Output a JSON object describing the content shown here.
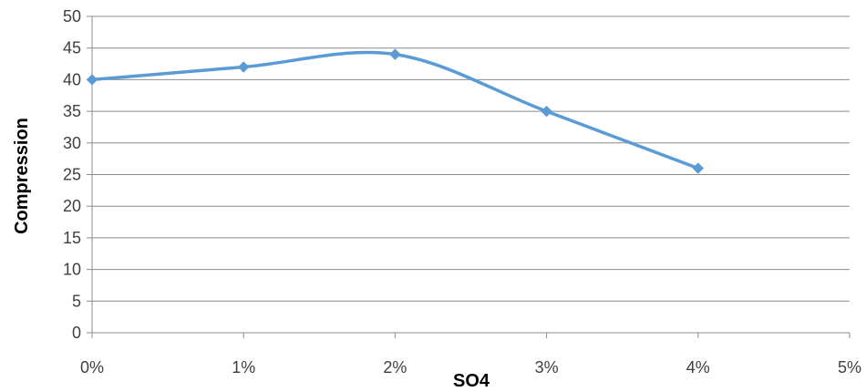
{
  "chart_data": {
    "type": "line",
    "title": "",
    "xlabel": "SO4",
    "ylabel": "Compression",
    "x_tick_labels": [
      "0%",
      "1%",
      "2%",
      "3%",
      "4%",
      "5%"
    ],
    "y_tick_labels": [
      "0",
      "5",
      "10",
      "15",
      "20",
      "25",
      "30",
      "35",
      "40",
      "45",
      "50"
    ],
    "xlim": [
      0,
      5
    ],
    "ylim": [
      0,
      50
    ],
    "y_step": 5,
    "grid": "horizontal",
    "legend": "none",
    "smooth": true,
    "series": [
      {
        "color": "#5b9bd5",
        "marker": "diamond",
        "x": [
          0,
          1,
          2,
          3,
          4
        ],
        "y": [
          40,
          42,
          44,
          35,
          26
        ]
      }
    ]
  }
}
